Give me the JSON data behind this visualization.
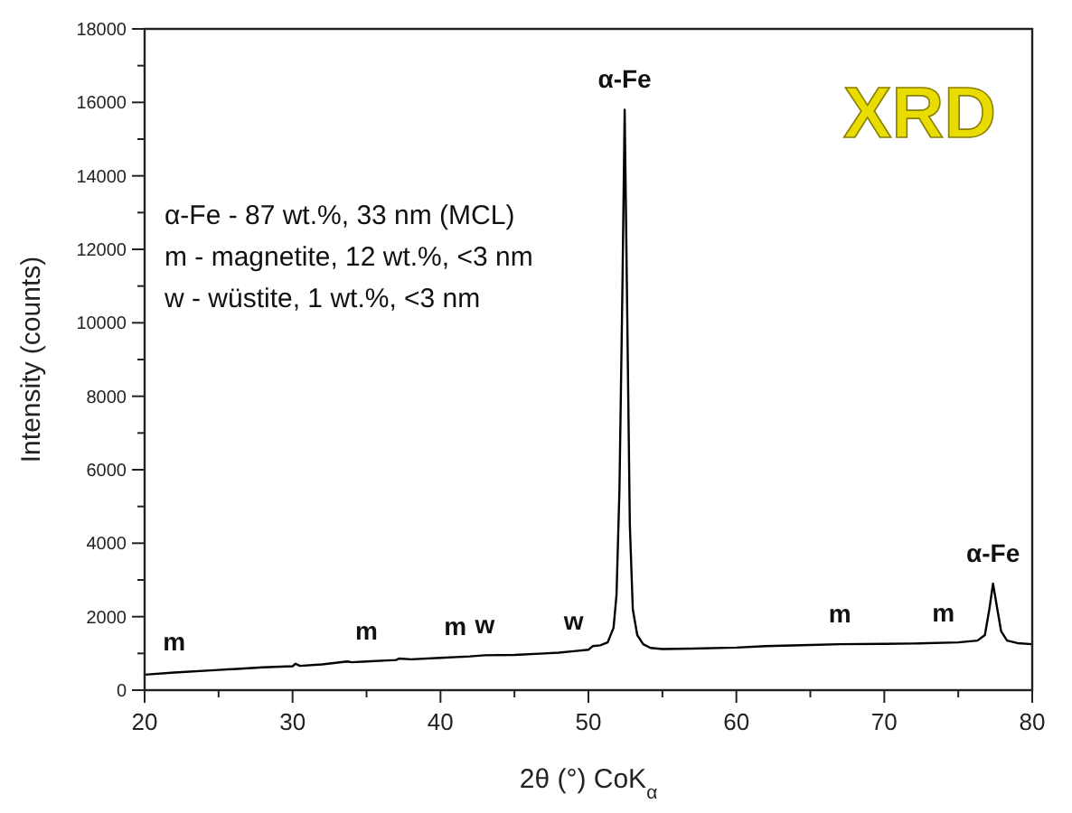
{
  "chart_data": {
    "type": "line",
    "title": "XRD",
    "xlabel": "2θ (°) CoK$_{α}$",
    "ylabel": "Intensity (counts)",
    "xlim": [
      20,
      80
    ],
    "xticks": [
      20,
      {
        "value": 25,
        "label": null
      },
      30,
      {
        "value": 35,
        "label": null
      },
      40,
      {
        "value": 45,
        "label": null
      },
      50,
      {
        "value": 55,
        "label": null
      },
      60,
      {
        "value": 65,
        "label": null
      },
      70,
      {
        "value": 75,
        "label": null
      },
      80
    ],
    "ylim": [
      0,
      18000
    ],
    "yticks": [
      0,
      {
        "value": 1000,
        "label": null
      },
      2000,
      {
        "value": 3000,
        "label": null
      },
      4000,
      {
        "value": 5000,
        "label": null
      },
      6000,
      {
        "value": 7000,
        "label": null
      },
      8000,
      {
        "value": 9000,
        "label": null
      },
      10000,
      {
        "value": 11000,
        "label": null
      },
      12000,
      {
        "value": 13000,
        "label": null
      },
      14000,
      {
        "value": 15000,
        "label": null
      },
      16000,
      {
        "value": 17000,
        "label": null
      },
      18000
    ],
    "grid": false,
    "marker": "none",
    "line_style": "solid",
    "series": [
      {
        "color": "#000000",
        "x": [
          20,
          22,
          25,
          28,
          30,
          30.2,
          30.5,
          32,
          33.7,
          34,
          35,
          37,
          37.2,
          38,
          40,
          42,
          43,
          45,
          47,
          48,
          49,
          50,
          50.3,
          50.8,
          51.3,
          51.7,
          51.9,
          52.1,
          52.3,
          52.45,
          52.6,
          52.8,
          53,
          53.3,
          53.7,
          54.2,
          55,
          57,
          60,
          62,
          65,
          67,
          70,
          72,
          75,
          76.3,
          76.8,
          77.1,
          77.35,
          77.6,
          77.9,
          78.3,
          79,
          80
        ],
        "values": [
          420,
          480,
          550,
          620,
          650,
          720,
          660,
          700,
          780,
          760,
          780,
          820,
          860,
          840,
          880,
          920,
          950,
          960,
          1000,
          1020,
          1060,
          1100,
          1200,
          1220,
          1300,
          1700,
          2600,
          5500,
          11000,
          15800,
          11000,
          4500,
          2200,
          1500,
          1250,
          1150,
          1120,
          1130,
          1160,
          1200,
          1230,
          1250,
          1260,
          1270,
          1300,
          1350,
          1500,
          2200,
          2900,
          2300,
          1600,
          1350,
          1280,
          1250
        ]
      }
    ],
    "annotations": [
      "α-Fe - 87 wt.%, 33 nm (MCL)",
      "m - magnetite, 12 wt.%, <3 nm",
      "w - wüstite, 1 wt.%, <3 nm",
      {
        "text": "m",
        "x": 22,
        "y": 480
      },
      {
        "text": "m",
        "x": 35,
        "y": 780
      },
      {
        "text": "m",
        "x": 41,
        "y": 900
      },
      {
        "text": "w",
        "x": 43,
        "y": 950
      },
      {
        "text": "w",
        "x": 49,
        "y": 1060
      },
      {
        "text": "α-Fe",
        "x": 52.45,
        "y": 15800
      },
      {
        "text": "m",
        "x": 67,
        "y": 1250
      },
      {
        "text": "m",
        "x": 74,
        "y": 1290
      },
      {
        "text": "α-Fe",
        "x": 77.35,
        "y": 2900
      }
    ]
  }
}
